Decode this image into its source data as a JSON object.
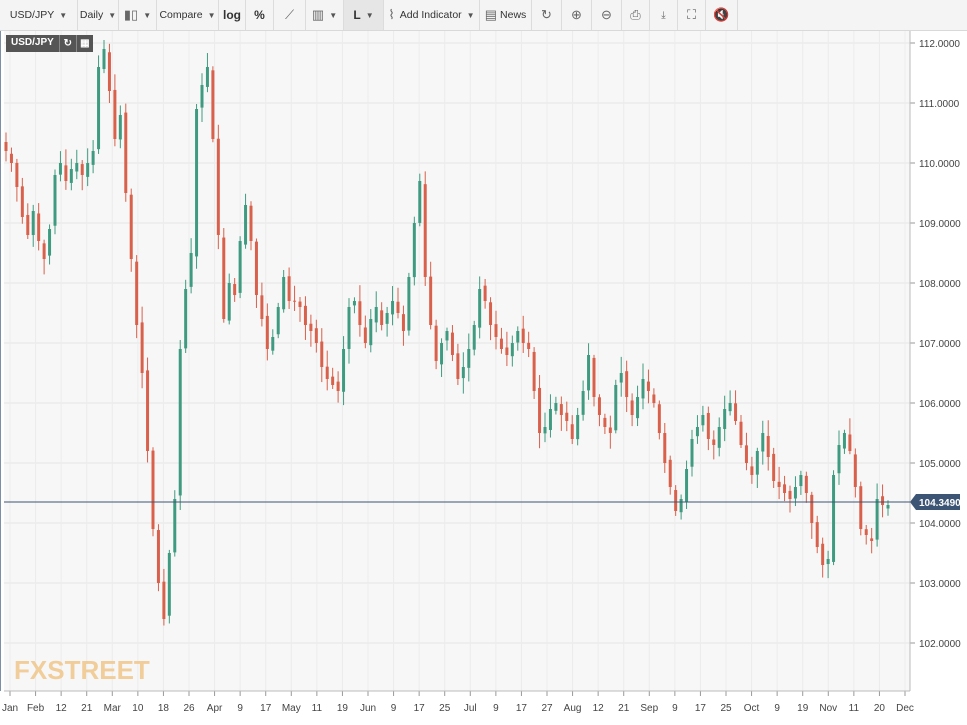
{
  "toolbar": {
    "symbol": "USD/JPY",
    "interval": "Daily",
    "compare": "Compare",
    "log": "log",
    "percent": "%",
    "line_style": "L",
    "add_indicator": "Add Indicator",
    "news": "News",
    "icons": [
      "candles-icon",
      "refresh-icon",
      "zoom-in-icon",
      "zoom-out-icon",
      "print-icon",
      "png-download-icon",
      "fullscreen-icon",
      "mute-icon"
    ]
  },
  "badge": {
    "symbol": "USD/JPY"
  },
  "watermark": "FXSTREET",
  "colors": {
    "up": "#3f9b7f",
    "down": "#d9604a",
    "last_price_line": "#3d5574",
    "last_price_label": "#3d5574",
    "watermark_fx": "#f0c68a",
    "watermark_street": "#f3cf9a"
  },
  "chart_data": {
    "type": "candlestick",
    "title": "USD/JPY",
    "interval": "Daily",
    "ylim": [
      101.2,
      112.2
    ],
    "grid": true,
    "price_ticks": [
      "112.0000",
      "111.0000",
      "110.0000",
      "109.0000",
      "108.0000",
      "107.0000",
      "106.0000",
      "105.0000",
      "104.0000",
      "103.0000",
      "102.0000"
    ],
    "x_ticks": [
      "Jan",
      "Feb",
      "12",
      "21",
      "Mar",
      "10",
      "18",
      "26",
      "Apr",
      "9",
      "17",
      "May",
      "11",
      "19",
      "Jun",
      "9",
      "17",
      "25",
      "Jul",
      "9",
      "17",
      "27",
      "Aug",
      "12",
      "21",
      "Sep",
      "9",
      "17",
      "25",
      "Oct",
      "9",
      "19",
      "Nov",
      "11",
      "20",
      "Dec"
    ],
    "last_price": "104.3490",
    "series_close": [
      110.2,
      110.0,
      109.6,
      109.1,
      108.8,
      109.2,
      108.7,
      108.4,
      108.9,
      109.8,
      110.0,
      109.7,
      109.9,
      110.0,
      109.8,
      110.0,
      110.2,
      111.6,
      111.9,
      111.2,
      110.4,
      110.8,
      109.5,
      108.4,
      107.3,
      106.5,
      105.2,
      103.9,
      103.0,
      102.4,
      103.5,
      104.4,
      106.9,
      107.9,
      108.5,
      110.9,
      111.3,
      111.6,
      110.4,
      108.8,
      107.4,
      108.0,
      107.8,
      108.7,
      109.3,
      108.7,
      107.8,
      107.4,
      106.9,
      107.1,
      107.6,
      108.1,
      107.7,
      107.7,
      107.6,
      107.3,
      107.2,
      107.0,
      106.6,
      106.4,
      106.3,
      106.2,
      106.9,
      107.6,
      107.7,
      107.3,
      107.0,
      107.4,
      107.6,
      107.3,
      107.5,
      107.7,
      107.5,
      107.2,
      108.1,
      109.0,
      109.7,
      108.1,
      107.3,
      106.7,
      107.0,
      107.2,
      106.8,
      106.4,
      106.6,
      106.9,
      107.3,
      107.9,
      107.7,
      107.3,
      107.1,
      106.9,
      106.8,
      107.0,
      107.2,
      107.0,
      106.9,
      106.2,
      105.5,
      105.6,
      105.9,
      106.0,
      105.8,
      105.7,
      105.4,
      105.8,
      106.2,
      106.8,
      106.1,
      105.8,
      105.6,
      105.5,
      106.3,
      106.5,
      106.1,
      105.8,
      106.1,
      106.4,
      106.2,
      106.0,
      105.5,
      105.0,
      104.6,
      104.2,
      104.4,
      104.9,
      105.4,
      105.6,
      105.8,
      105.4,
      105.3,
      105.6,
      105.9,
      106.0,
      105.7,
      105.3,
      105.0,
      104.8,
      105.2,
      105.5,
      105.1,
      104.7,
      104.6,
      104.5,
      104.4,
      104.6,
      104.8,
      104.5,
      104.0,
      103.6,
      103.3,
      103.4,
      104.8,
      105.3,
      105.5,
      105.2,
      104.6,
      103.9,
      103.8,
      103.7,
      104.4,
      104.3,
      104.3
    ]
  }
}
